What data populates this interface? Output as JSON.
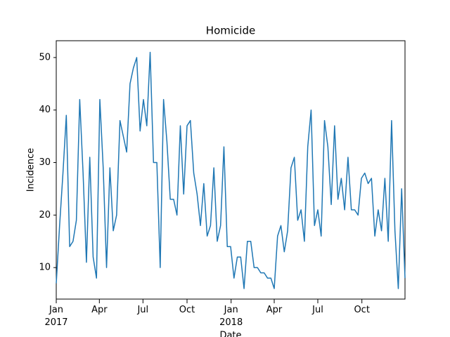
{
  "chart_data": {
    "type": "line",
    "title": "Homicide",
    "x_label": "Date",
    "y_label": "Incidence",
    "series": [
      {
        "name": "Homicide",
        "color": "#1f77b4",
        "values": [
          7,
          18,
          28,
          39,
          14,
          15,
          19,
          42,
          28,
          11,
          31,
          12,
          8,
          42,
          29,
          10,
          29,
          17,
          20,
          38,
          35,
          32,
          45,
          48,
          50,
          36,
          42,
          37,
          51,
          30,
          30,
          10,
          42,
          34,
          23,
          23,
          20,
          37,
          24,
          37,
          38,
          28,
          24,
          18,
          26,
          16,
          18,
          29,
          15,
          18,
          33,
          14,
          14,
          8,
          12,
          12,
          6,
          15,
          15,
          10,
          10,
          9,
          9,
          8,
          8,
          6,
          16,
          18,
          13,
          17,
          29,
          31,
          19,
          21,
          15,
          33,
          40,
          18,
          21,
          16,
          38,
          33,
          22,
          37,
          23,
          27,
          21,
          31,
          21,
          21,
          20,
          27,
          28,
          26,
          27,
          16,
          21,
          17,
          27,
          15,
          38,
          17,
          6,
          25,
          8
        ]
      }
    ],
    "xlim": [
      0,
      104
    ],
    "xticks": [
      {
        "value": 0,
        "label": "Jan\n2017"
      },
      {
        "value": 12.857,
        "label": "Apr"
      },
      {
        "value": 25.857,
        "label": "Jul"
      },
      {
        "value": 39,
        "label": "Oct"
      },
      {
        "value": 52.143,
        "label": "Jan\n2018"
      },
      {
        "value": 65,
        "label": "Apr"
      },
      {
        "value": 78,
        "label": "Jul"
      },
      {
        "value": 91.143,
        "label": "Oct"
      }
    ],
    "ylim": [
      4,
      53.2
    ],
    "yticks": [
      10,
      20,
      30,
      40,
      50
    ]
  }
}
